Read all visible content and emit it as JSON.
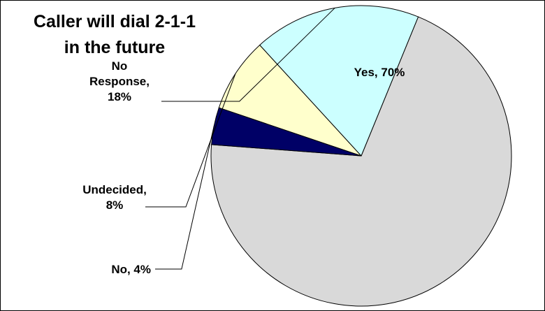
{
  "chart_data": {
    "type": "pie",
    "title": "Caller will dial 2-1-1 in the future",
    "title_lines": [
      "Caller will dial 2-1-1",
      "in the future"
    ],
    "slices": [
      {
        "name": "Yes",
        "value": 70,
        "color": "#d9d9d9",
        "label_lines": [
          "Yes, 70%"
        ]
      },
      {
        "name": "No",
        "value": 4,
        "color": "#000066",
        "label_lines": [
          "No, 4%"
        ]
      },
      {
        "name": "Undecided",
        "value": 8,
        "color": "#ffffcc",
        "label_lines": [
          "Undecided,",
          "8%"
        ]
      },
      {
        "name": "No Response",
        "value": 18,
        "color": "#ccffff",
        "label_lines": [
          "No",
          "Response,",
          "18%"
        ]
      }
    ],
    "legend": "none",
    "data_labels": "outside-with-leader-lines"
  }
}
